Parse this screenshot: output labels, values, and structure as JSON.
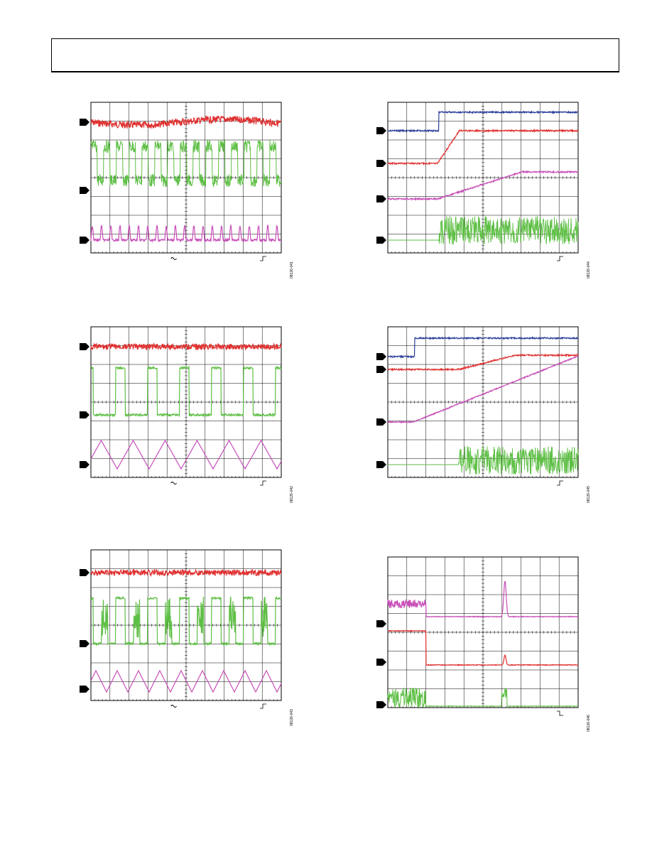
{
  "page": {
    "header": ""
  },
  "figures": [
    {
      "id": "08126-041",
      "channels": [
        {
          "color": "#e03030",
          "marker": "ch1-marker"
        },
        {
          "color": "#5ebf45",
          "marker": "ch2-marker"
        },
        {
          "color": "#c84fb8",
          "marker": "ch3-marker"
        }
      ],
      "trigger_slope": "rising",
      "coupling_glyph": "ac"
    },
    {
      "id": "08126-042",
      "channels": [
        {
          "color": "#e03030"
        },
        {
          "color": "#5ebf45"
        },
        {
          "color": "#c84fb8"
        }
      ],
      "trigger_slope": "rising",
      "coupling_glyph": "ac"
    },
    {
      "id": "08126-043",
      "channels": [
        {
          "color": "#e03030"
        },
        {
          "color": "#5ebf45"
        },
        {
          "color": "#c84fb8"
        }
      ],
      "trigger_slope": "rising",
      "coupling_glyph": "ac"
    },
    {
      "id": "08126-044",
      "channels": [
        {
          "color": "#2a3e9a"
        },
        {
          "color": "#e03030"
        },
        {
          "color": "#c84fb8"
        },
        {
          "color": "#5ebf45"
        }
      ],
      "trigger_slope": "rising"
    },
    {
      "id": "08126-045",
      "channels": [
        {
          "color": "#2a3e9a"
        },
        {
          "color": "#e03030"
        },
        {
          "color": "#c84fb8"
        },
        {
          "color": "#5ebf45"
        }
      ],
      "trigger_slope": "rising"
    },
    {
      "id": "08126-046",
      "channels": [
        {
          "color": "#c84fb8"
        },
        {
          "color": "#e03030"
        },
        {
          "color": "#5ebf45"
        }
      ],
      "trigger_slope": "falling"
    }
  ]
}
